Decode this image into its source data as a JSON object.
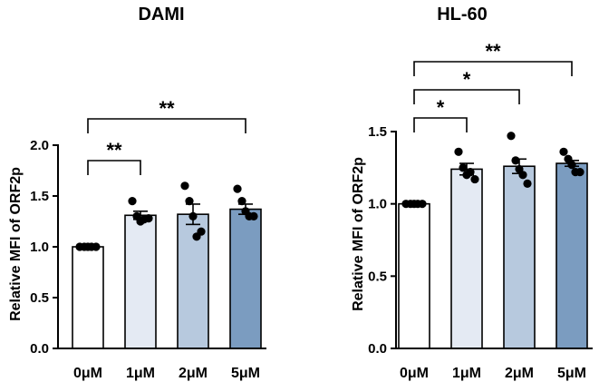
{
  "chart_data": [
    {
      "type": "bar",
      "title": "DAMI",
      "ylabel": "Relative MFI of  ORF2p",
      "xlabel": "",
      "categories": [
        "0μM",
        "1μM",
        "2μM",
        "5μM"
      ],
      "values": [
        1.0,
        1.31,
        1.32,
        1.37
      ],
      "errors": [
        0.0,
        0.04,
        0.1,
        0.05
      ],
      "points": [
        [
          1.0,
          1.0,
          1.0,
          1.0,
          1.0
        ],
        [
          1.45,
          1.3,
          1.25,
          1.27,
          1.28
        ],
        [
          1.6,
          1.45,
          1.3,
          1.1,
          1.15
        ],
        [
          1.57,
          1.45,
          1.35,
          1.3,
          1.3
        ]
      ],
      "colors": [
        "#ffffff",
        "#e4eaf3",
        "#b7c9de",
        "#7b9cc0"
      ],
      "ylim": [
        0,
        2.0
      ],
      "yticks": [
        "0.0",
        "0.5",
        "1.0",
        "1.5",
        "2.0"
      ],
      "significance": [
        {
          "from": "0μM",
          "to": "1μM",
          "label": "**"
        },
        {
          "from": "0μM",
          "to": "5μM",
          "label": "**"
        }
      ]
    },
    {
      "type": "bar",
      "title": "HL-60",
      "ylabel": "Relative MFI of  ORF2p",
      "xlabel": "",
      "categories": [
        "0μM",
        "1μM",
        "2μM",
        "5μM"
      ],
      "values": [
        1.0,
        1.24,
        1.26,
        1.28
      ],
      "errors": [
        0.0,
        0.04,
        0.05,
        0.02
      ],
      "points": [
        [
          1.0,
          1.0,
          1.0,
          1.0,
          1.0
        ],
        [
          1.36,
          1.25,
          1.2,
          1.22,
          1.17
        ],
        [
          1.47,
          1.3,
          1.24,
          1.2,
          1.14
        ],
        [
          1.36,
          1.31,
          1.27,
          1.22,
          1.22
        ]
      ],
      "colors": [
        "#ffffff",
        "#e4eaf3",
        "#b7c9de",
        "#7b9cc0"
      ],
      "ylim": [
        0,
        1.5
      ],
      "yticks": [
        "0.0",
        "0.5",
        "1.0",
        "1.5"
      ],
      "significance": [
        {
          "from": "0μM",
          "to": "1μM",
          "label": "*"
        },
        {
          "from": "0μM",
          "to": "2μM",
          "label": "*"
        },
        {
          "from": "0μM",
          "to": "5μM",
          "label": "**"
        }
      ]
    }
  ]
}
